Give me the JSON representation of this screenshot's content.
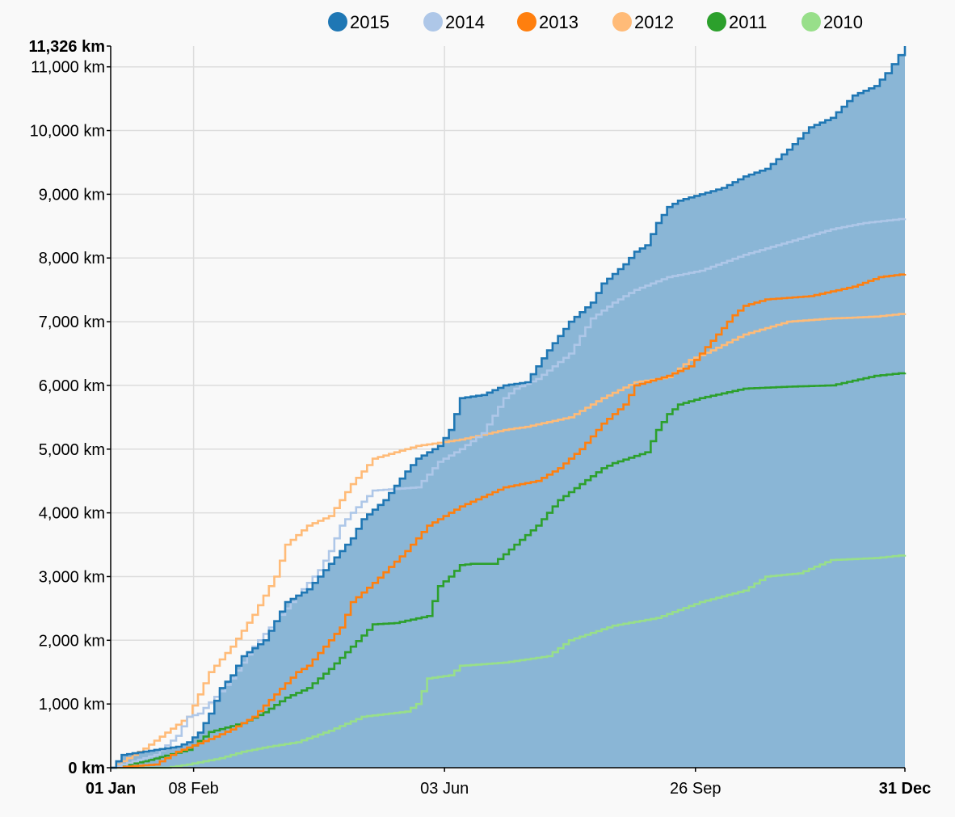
{
  "chart_data": {
    "type": "line",
    "x_axis": {
      "type": "date",
      "range": [
        "01 Jan",
        "31 Dec"
      ],
      "ticks": [
        {
          "label": "01 Jan",
          "day": 0,
          "bold": true,
          "grid": false
        },
        {
          "label": "08 Feb",
          "day": 38,
          "bold": false,
          "grid": true
        },
        {
          "label": "03 Jun",
          "day": 153,
          "bold": false,
          "grid": true
        },
        {
          "label": "26 Sep",
          "day": 268,
          "bold": false,
          "grid": true
        },
        {
          "label": "31 Dec",
          "day": 364,
          "bold": true,
          "grid": false
        }
      ]
    },
    "y_axis": {
      "unit": "km",
      "ylim": [
        0,
        11326
      ],
      "ticks": [
        {
          "label": "0 km",
          "value": 0,
          "bold": true
        },
        {
          "label": "1,000 km",
          "value": 1000,
          "bold": false
        },
        {
          "label": "2,000 km",
          "value": 2000,
          "bold": false
        },
        {
          "label": "3,000 km",
          "value": 3000,
          "bold": false
        },
        {
          "label": "4,000 km",
          "value": 4000,
          "bold": false
        },
        {
          "label": "5,000 km",
          "value": 5000,
          "bold": false
        },
        {
          "label": "6,000 km",
          "value": 6000,
          "bold": false
        },
        {
          "label": "7,000 km",
          "value": 7000,
          "bold": false
        },
        {
          "label": "8,000 km",
          "value": 8000,
          "bold": false
        },
        {
          "label": "9,000 km",
          "value": 9000,
          "bold": false
        },
        {
          "label": "10,000 km",
          "value": 10000,
          "bold": false
        },
        {
          "label": "11,000 km",
          "value": 11000,
          "bold": false
        },
        {
          "label": "11,326 km",
          "value": 11326,
          "bold": true
        }
      ]
    },
    "grid": true,
    "legend_position": "top",
    "series": [
      {
        "name": "2010",
        "color": "#98df8a",
        "area": false,
        "points": [
          [
            0,
            0
          ],
          [
            25,
            0
          ],
          [
            35,
            50
          ],
          [
            50,
            150
          ],
          [
            60,
            250
          ],
          [
            72,
            330
          ],
          [
            85,
            400
          ],
          [
            100,
            580
          ],
          [
            115,
            800
          ],
          [
            135,
            880
          ],
          [
            140,
            1000
          ],
          [
            145,
            1400
          ],
          [
            155,
            1450
          ],
          [
            160,
            1600
          ],
          [
            180,
            1650
          ],
          [
            200,
            1750
          ],
          [
            210,
            2000
          ],
          [
            230,
            2230
          ],
          [
            250,
            2350
          ],
          [
            270,
            2600
          ],
          [
            290,
            2780
          ],
          [
            300,
            3000
          ],
          [
            315,
            3050
          ],
          [
            330,
            3260
          ],
          [
            350,
            3290
          ],
          [
            364,
            3340
          ]
        ]
      },
      {
        "name": "2011",
        "color": "#2ca02c",
        "area": false,
        "points": [
          [
            0,
            0
          ],
          [
            15,
            100
          ],
          [
            35,
            280
          ],
          [
            45,
            560
          ],
          [
            60,
            700
          ],
          [
            70,
            870
          ],
          [
            80,
            1100
          ],
          [
            90,
            1250
          ],
          [
            100,
            1550
          ],
          [
            110,
            1900
          ],
          [
            120,
            2250
          ],
          [
            130,
            2270
          ],
          [
            145,
            2380
          ],
          [
            150,
            2850
          ],
          [
            155,
            3000
          ],
          [
            160,
            3180
          ],
          [
            165,
            3200
          ],
          [
            175,
            3200
          ],
          [
            185,
            3500
          ],
          [
            195,
            3800
          ],
          [
            205,
            4200
          ],
          [
            215,
            4450
          ],
          [
            225,
            4700
          ],
          [
            230,
            4780
          ],
          [
            245,
            4950
          ],
          [
            250,
            5300
          ],
          [
            255,
            5550
          ],
          [
            260,
            5700
          ],
          [
            270,
            5800
          ],
          [
            290,
            5950
          ],
          [
            310,
            5980
          ],
          [
            330,
            6000
          ],
          [
            350,
            6150
          ],
          [
            364,
            6200
          ]
        ]
      },
      {
        "name": "2012",
        "color": "#ffbb78",
        "area": false,
        "points": [
          [
            0,
            0
          ],
          [
            15,
            300
          ],
          [
            35,
            800
          ],
          [
            45,
            1500
          ],
          [
            55,
            1900
          ],
          [
            65,
            2400
          ],
          [
            75,
            3000
          ],
          [
            80,
            3500
          ],
          [
            90,
            3800
          ],
          [
            100,
            3950
          ],
          [
            110,
            4450
          ],
          [
            120,
            4850
          ],
          [
            140,
            5050
          ],
          [
            160,
            5150
          ],
          [
            180,
            5300
          ],
          [
            190,
            5350
          ],
          [
            210,
            5500
          ],
          [
            225,
            5800
          ],
          [
            240,
            6050
          ],
          [
            250,
            6100
          ],
          [
            255,
            6130
          ],
          [
            265,
            6400
          ],
          [
            275,
            6550
          ],
          [
            290,
            6800
          ],
          [
            310,
            7000
          ],
          [
            330,
            7050
          ],
          [
            350,
            7080
          ],
          [
            364,
            7130
          ]
        ]
      },
      {
        "name": "2013",
        "color": "#ff7f0e",
        "area": false,
        "points": [
          [
            0,
            0
          ],
          [
            20,
            50
          ],
          [
            30,
            250
          ],
          [
            45,
            450
          ],
          [
            55,
            600
          ],
          [
            65,
            800
          ],
          [
            75,
            1150
          ],
          [
            85,
            1500
          ],
          [
            90,
            1600
          ],
          [
            95,
            1800
          ],
          [
            105,
            2200
          ],
          [
            110,
            2600
          ],
          [
            120,
            2900
          ],
          [
            135,
            3400
          ],
          [
            145,
            3800
          ],
          [
            160,
            4100
          ],
          [
            180,
            4400
          ],
          [
            195,
            4500
          ],
          [
            205,
            4700
          ],
          [
            215,
            5000
          ],
          [
            225,
            5400
          ],
          [
            235,
            5700
          ],
          [
            240,
            6000
          ],
          [
            255,
            6150
          ],
          [
            265,
            6300
          ],
          [
            275,
            6700
          ],
          [
            285,
            7100
          ],
          [
            290,
            7250
          ],
          [
            300,
            7350
          ],
          [
            320,
            7400
          ],
          [
            340,
            7550
          ],
          [
            352,
            7700
          ],
          [
            364,
            7750
          ]
        ]
      },
      {
        "name": "2014",
        "color": "#aec7e8",
        "area": false,
        "points": [
          [
            0,
            0
          ],
          [
            20,
            200
          ],
          [
            30,
            500
          ],
          [
            35,
            800
          ],
          [
            40,
            850
          ],
          [
            50,
            1200
          ],
          [
            55,
            1400
          ],
          [
            65,
            1900
          ],
          [
            75,
            2300
          ],
          [
            85,
            2700
          ],
          [
            95,
            3100
          ],
          [
            100,
            3400
          ],
          [
            105,
            3800
          ],
          [
            110,
            4000
          ],
          [
            120,
            4350
          ],
          [
            140,
            4400
          ],
          [
            150,
            4800
          ],
          [
            160,
            5000
          ],
          [
            170,
            5250
          ],
          [
            180,
            5800
          ],
          [
            185,
            5950
          ],
          [
            195,
            6100
          ],
          [
            210,
            6500
          ],
          [
            220,
            7050
          ],
          [
            230,
            7300
          ],
          [
            240,
            7500
          ],
          [
            255,
            7700
          ],
          [
            270,
            7800
          ],
          [
            290,
            8050
          ],
          [
            310,
            8250
          ],
          [
            330,
            8450
          ],
          [
            345,
            8550
          ],
          [
            364,
            8620
          ]
        ]
      },
      {
        "name": "2015",
        "color": "#1f77b4",
        "area": true,
        "area_color": "#8ab6d6",
        "points": [
          [
            0,
            0
          ],
          [
            5,
            200
          ],
          [
            20,
            280
          ],
          [
            30,
            330
          ],
          [
            35,
            400
          ],
          [
            40,
            550
          ],
          [
            45,
            850
          ],
          [
            50,
            1250
          ],
          [
            55,
            1450
          ],
          [
            60,
            1750
          ],
          [
            70,
            2000
          ],
          [
            75,
            2300
          ],
          [
            80,
            2600
          ],
          [
            90,
            2800
          ],
          [
            100,
            3200
          ],
          [
            110,
            3600
          ],
          [
            115,
            3900
          ],
          [
            125,
            4200
          ],
          [
            135,
            4650
          ],
          [
            140,
            4850
          ],
          [
            150,
            5050
          ],
          [
            155,
            5300
          ],
          [
            160,
            5800
          ],
          [
            170,
            5850
          ],
          [
            180,
            6000
          ],
          [
            190,
            6050
          ],
          [
            200,
            6550
          ],
          [
            210,
            7000
          ],
          [
            220,
            7300
          ],
          [
            225,
            7600
          ],
          [
            235,
            7900
          ],
          [
            240,
            8100
          ],
          [
            245,
            8200
          ],
          [
            250,
            8550
          ],
          [
            255,
            8800
          ],
          [
            260,
            8900
          ],
          [
            270,
            9000
          ],
          [
            280,
            9100
          ],
          [
            290,
            9280
          ],
          [
            300,
            9400
          ],
          [
            310,
            9700
          ],
          [
            320,
            10050
          ],
          [
            330,
            10200
          ],
          [
            340,
            10550
          ],
          [
            350,
            10700
          ],
          [
            355,
            10900
          ],
          [
            364,
            11326
          ]
        ]
      }
    ]
  }
}
